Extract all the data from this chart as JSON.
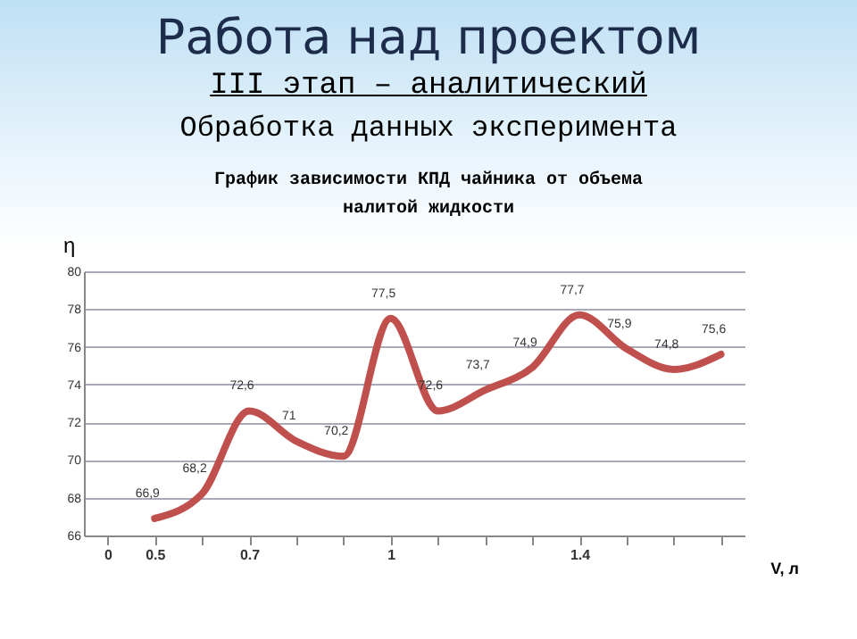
{
  "chart_data": {
    "type": "line",
    "title": "График зависимости КПД чайника от объема налитой жидкости",
    "annotations": [
      "Работа над проектом",
      "III этап  – аналитический",
      "Обработка данных эксперимента"
    ],
    "xlabel": "V, л",
    "ylabel": "η",
    "categories": [
      "0",
      "0.5",
      null,
      "0.7",
      null,
      null,
      "1",
      null,
      null,
      null,
      "1.4",
      null,
      null,
      null
    ],
    "series": [
      {
        "color": "#c0504d",
        "values": [
          null,
          66.9,
          68.2,
          72.6,
          71,
          70.2,
          77.5,
          72.6,
          73.7,
          74.9,
          77.7,
          75.9,
          74.8,
          75.6
        ],
        "value_labels": [
          null,
          "66,9",
          "68,2",
          "72,6",
          "71",
          "70,2",
          "77,5",
          "72,6",
          "73,7",
          "74,9",
          "77,7",
          "75,9",
          "74,8",
          "75,6"
        ]
      }
    ],
    "ylim": [
      66,
      80
    ],
    "yticks": [
      66,
      68,
      70,
      72,
      74,
      76,
      78,
      80
    ],
    "grid": "y",
    "marker": "none",
    "line_style": "solid"
  }
}
